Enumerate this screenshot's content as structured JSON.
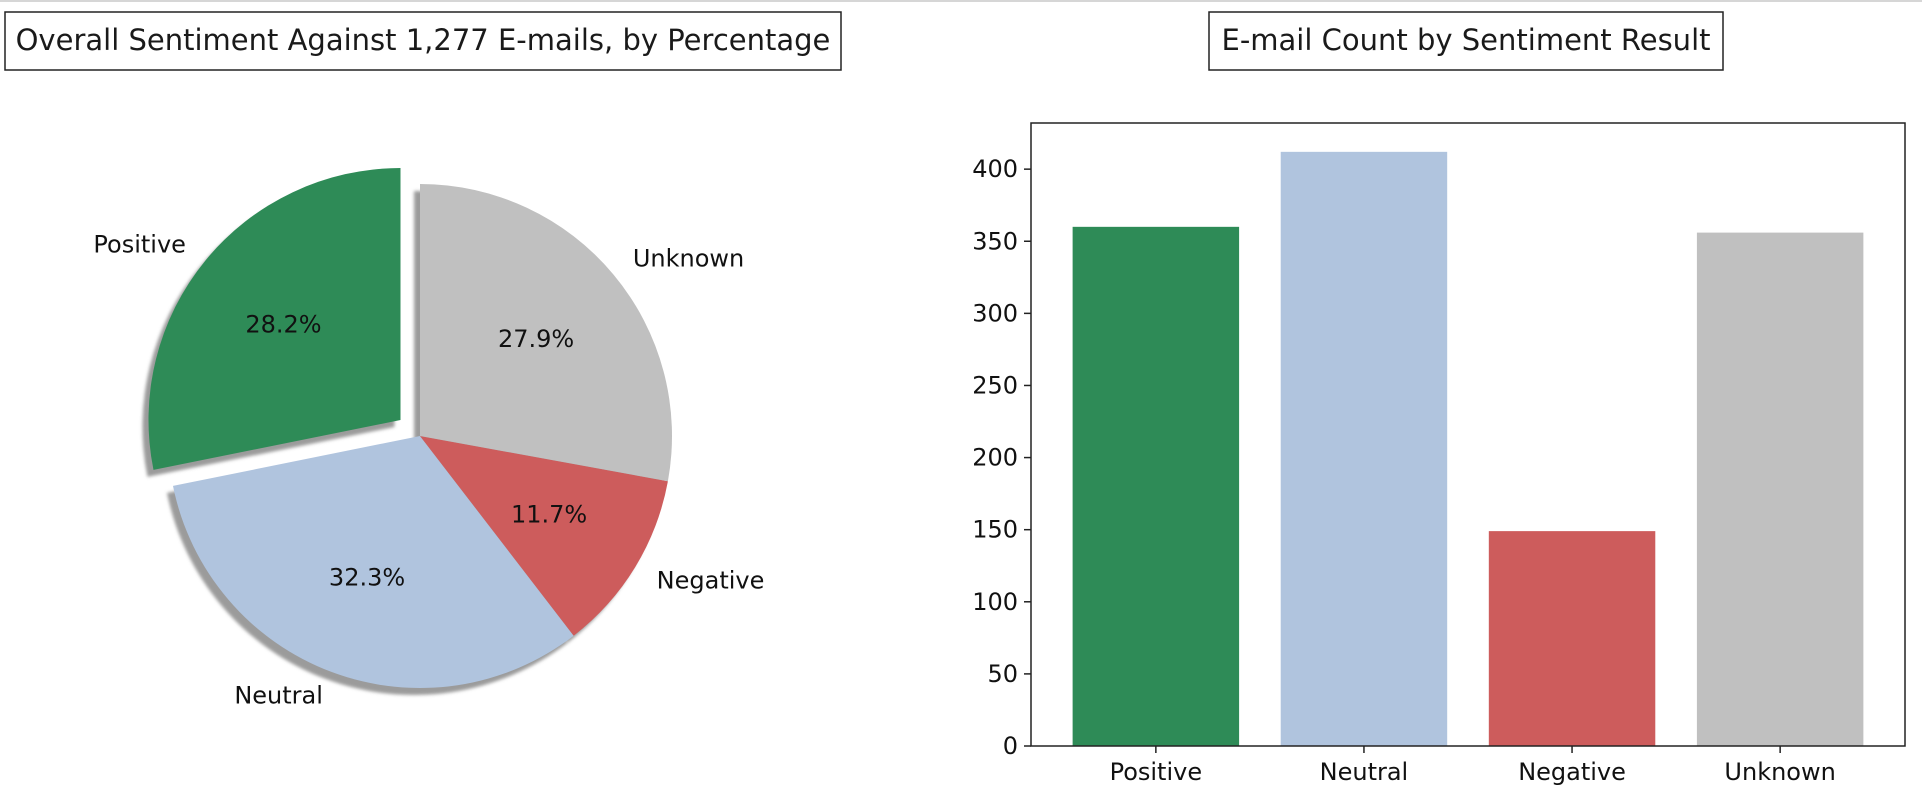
{
  "chart_data": [
    {
      "type": "pie",
      "title": "Overall Sentiment Against 1,277 E-mails, by Percentage",
      "labels": [
        "Positive",
        "Neutral",
        "Negative",
        "Unknown"
      ],
      "values": [
        28.2,
        32.3,
        11.7,
        27.9
      ],
      "autopct_labels": [
        "28.2%",
        "32.3%",
        "11.7%",
        "27.9%"
      ],
      "colors": [
        "#2e8b57",
        "#b0c4de",
        "#cd5c5c",
        "#c0c0c0"
      ],
      "exploded": [
        "Positive"
      ],
      "shadow": true,
      "start_angle_deg": 90
    },
    {
      "type": "bar",
      "title": "E-mail Count by Sentiment Result",
      "categories": [
        "Positive",
        "Neutral",
        "Negative",
        "Unknown"
      ],
      "values": [
        360,
        412,
        149,
        356
      ],
      "colors": [
        "#2e8b57",
        "#b0c4de",
        "#cd5c5c",
        "#c0c0c0"
      ],
      "xlabel": "",
      "ylabel": "",
      "ylim": [
        0,
        432
      ],
      "yticks": [
        0,
        50,
        100,
        150,
        200,
        250,
        300,
        350,
        400
      ],
      "grid": false
    }
  ]
}
